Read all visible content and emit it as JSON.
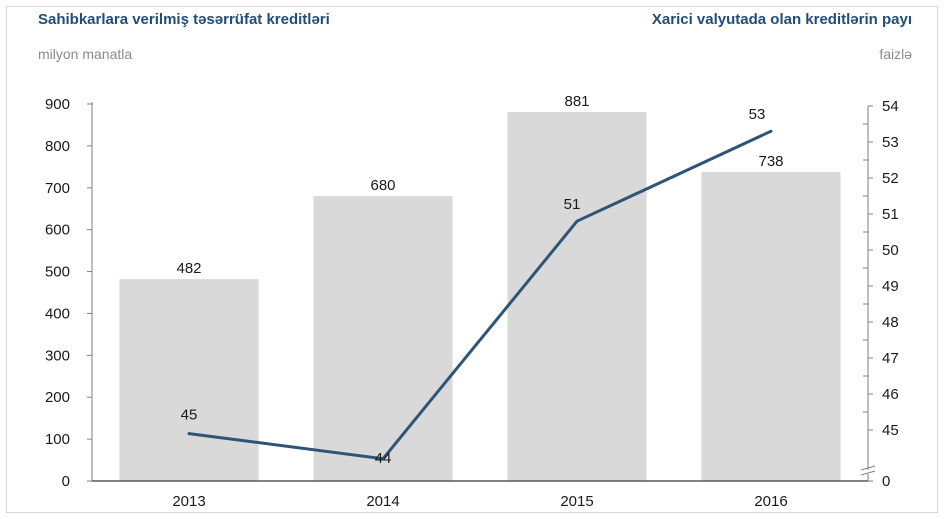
{
  "header": {
    "left_title": "Sahibkarlara verilmiş təsərrüfat kreditləri",
    "left_unit": "milyon manatla",
    "right_title": "Xarici valyutada olan kreditlərin payı",
    "right_unit": "faizlə"
  },
  "colors": {
    "bar": "#d9d9d9",
    "line": "#2e5478",
    "title": "#1f4e79",
    "axis": "#7f7f7f"
  },
  "chart_data": {
    "type": "bar",
    "categories": [
      "2013",
      "2014",
      "2015",
      "2016"
    ],
    "series": [
      {
        "type": "bar",
        "axis": "left",
        "values": [
          482,
          680,
          881,
          738
        ],
        "labels": [
          "482",
          "680",
          "881",
          "738"
        ]
      },
      {
        "type": "line",
        "axis": "right",
        "values": [
          44.9,
          44.2,
          50.8,
          53.3
        ],
        "labels": [
          "45",
          "44",
          "51",
          "53"
        ]
      }
    ],
    "y_left": {
      "range": [
        0,
        900
      ],
      "ticks": [
        "0",
        "100",
        "200",
        "300",
        "400",
        "500",
        "600",
        "700",
        "800",
        "900"
      ]
    },
    "y_right": {
      "range": [
        44,
        54
      ],
      "axis_break": true,
      "ticks": [
        "0",
        "45",
        "46",
        "47",
        "48",
        "49",
        "50",
        "51",
        "52",
        "53",
        "54"
      ],
      "tick_values": [
        44,
        45,
        46,
        47,
        48,
        49,
        50,
        51,
        52,
        53,
        54
      ]
    },
    "grid": false,
    "legend": "none"
  }
}
